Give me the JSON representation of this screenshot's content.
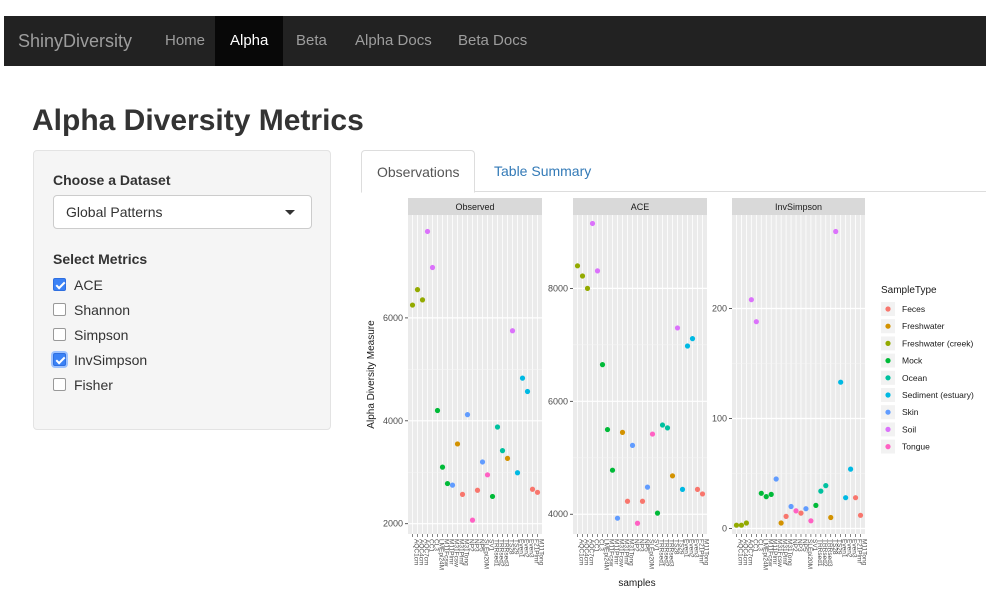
{
  "app": {
    "brand": "ShinyDiversity"
  },
  "nav": [
    {
      "label": "Home",
      "active": false
    },
    {
      "label": "Alpha",
      "active": true
    },
    {
      "label": "Beta",
      "active": false
    },
    {
      "label": "Alpha Docs",
      "active": false
    },
    {
      "label": "Beta Docs",
      "active": false
    }
  ],
  "page": {
    "title": "Alpha Diversity Metrics"
  },
  "sidebar": {
    "dataset_label": "Choose a Dataset",
    "dataset_value": "Global Patterns",
    "metrics_label": "Select Metrics",
    "metrics": [
      {
        "label": "ACE",
        "checked": true
      },
      {
        "label": "Shannon",
        "checked": false
      },
      {
        "label": "Simpson",
        "checked": false
      },
      {
        "label": "InvSimpson",
        "checked": true
      },
      {
        "label": "Fisher",
        "checked": false
      }
    ]
  },
  "tabs": [
    {
      "label": "Observations",
      "active": true
    },
    {
      "label": "Table Summary",
      "active": false
    }
  ],
  "chart_data": {
    "type": "scatter",
    "ylabel": "Alpha Diversity Measure",
    "xlabel": "samples",
    "legend_title": "SampleType",
    "legend_position": "right",
    "grid": true,
    "categories": [
      {
        "name": "Feces",
        "color": "#F8766D"
      },
      {
        "name": "Freshwater",
        "color": "#D39200"
      },
      {
        "name": "Freshwater (creek)",
        "color": "#93AA00"
      },
      {
        "name": "Mock",
        "color": "#00BA38"
      },
      {
        "name": "Ocean",
        "color": "#00C19F"
      },
      {
        "name": "Sediment (estuary)",
        "color": "#00B9E3"
      },
      {
        "name": "Skin",
        "color": "#619CFF"
      },
      {
        "name": "Soil",
        "color": "#DB72FB"
      },
      {
        "name": "Tongue",
        "color": "#FF61C3"
      }
    ],
    "panels": [
      {
        "title": "Observed",
        "ylim": [
          1800,
          8000
        ],
        "yticks": [
          "2000",
          "4000",
          "6000"
        ],
        "points": [
          {
            "x": 1,
            "y": 6250,
            "cat": 2
          },
          {
            "x": 2,
            "y": 6550,
            "cat": 2
          },
          {
            "x": 3,
            "y": 6350,
            "cat": 2
          },
          {
            "x": 4,
            "y": 7680,
            "cat": 7
          },
          {
            "x": 5,
            "y": 6980,
            "cat": 7
          },
          {
            "x": 6,
            "y": 4200,
            "cat": 3
          },
          {
            "x": 7,
            "y": 3100,
            "cat": 3
          },
          {
            "x": 8,
            "y": 2780,
            "cat": 3
          },
          {
            "x": 9,
            "y": 2750,
            "cat": 6
          },
          {
            "x": 10,
            "y": 3550,
            "cat": 1
          },
          {
            "x": 11,
            "y": 2570,
            "cat": 0
          },
          {
            "x": 12,
            "y": 4120,
            "cat": 6
          },
          {
            "x": 13,
            "y": 2070,
            "cat": 8
          },
          {
            "x": 14,
            "y": 2650,
            "cat": 0
          },
          {
            "x": 15,
            "y": 3200,
            "cat": 6
          },
          {
            "x": 16,
            "y": 2950,
            "cat": 8
          },
          {
            "x": 17,
            "y": 2530,
            "cat": 3
          },
          {
            "x": 18,
            "y": 3880,
            "cat": 4
          },
          {
            "x": 19,
            "y": 3420,
            "cat": 4
          },
          {
            "x": 20,
            "y": 3270,
            "cat": 1
          },
          {
            "x": 21,
            "y": 5750,
            "cat": 7
          },
          {
            "x": 22,
            "y": 2990,
            "cat": 5
          },
          {
            "x": 23,
            "y": 4830,
            "cat": 5
          },
          {
            "x": 24,
            "y": 4570,
            "cat": 5
          },
          {
            "x": 25,
            "y": 2670,
            "cat": 0
          },
          {
            "x": 26,
            "y": 2610,
            "cat": 0
          }
        ]
      },
      {
        "title": "ACE",
        "ylim": [
          3650,
          9300
        ],
        "yticks": [
          "4000",
          "6000",
          "8000"
        ],
        "points": [
          {
            "x": 1,
            "y": 8400,
            "cat": 2
          },
          {
            "x": 2,
            "y": 8220,
            "cat": 2
          },
          {
            "x": 3,
            "y": 8000,
            "cat": 2
          },
          {
            "x": 4,
            "y": 9150,
            "cat": 7
          },
          {
            "x": 5,
            "y": 8310,
            "cat": 7
          },
          {
            "x": 6,
            "y": 6650,
            "cat": 3
          },
          {
            "x": 7,
            "y": 5500,
            "cat": 3
          },
          {
            "x": 8,
            "y": 4780,
            "cat": 3
          },
          {
            "x": 9,
            "y": 3930,
            "cat": 6
          },
          {
            "x": 10,
            "y": 5450,
            "cat": 1
          },
          {
            "x": 11,
            "y": 4230,
            "cat": 0
          },
          {
            "x": 12,
            "y": 5220,
            "cat": 6
          },
          {
            "x": 13,
            "y": 3840,
            "cat": 8
          },
          {
            "x": 14,
            "y": 4230,
            "cat": 0
          },
          {
            "x": 15,
            "y": 4480,
            "cat": 6
          },
          {
            "x": 16,
            "y": 5420,
            "cat": 8
          },
          {
            "x": 17,
            "y": 4020,
            "cat": 3
          },
          {
            "x": 18,
            "y": 5580,
            "cat": 4
          },
          {
            "x": 19,
            "y": 5530,
            "cat": 4
          },
          {
            "x": 20,
            "y": 4680,
            "cat": 1
          },
          {
            "x": 21,
            "y": 7300,
            "cat": 7
          },
          {
            "x": 22,
            "y": 4440,
            "cat": 5
          },
          {
            "x": 23,
            "y": 6980,
            "cat": 5
          },
          {
            "x": 24,
            "y": 7110,
            "cat": 5
          },
          {
            "x": 25,
            "y": 4440,
            "cat": 0
          },
          {
            "x": 26,
            "y": 4360,
            "cat": 0
          }
        ]
      },
      {
        "title": "InvSimpson",
        "ylim": [
          -5,
          285
        ],
        "yticks": [
          "0",
          "100",
          "200"
        ],
        "points": [
          {
            "x": 1,
            "y": 3,
            "cat": 2
          },
          {
            "x": 2,
            "y": 3,
            "cat": 2
          },
          {
            "x": 3,
            "y": 5,
            "cat": 2
          },
          {
            "x": 4,
            "y": 208,
            "cat": 7
          },
          {
            "x": 5,
            "y": 188,
            "cat": 7
          },
          {
            "x": 6,
            "y": 32,
            "cat": 3
          },
          {
            "x": 7,
            "y": 29,
            "cat": 3
          },
          {
            "x": 8,
            "y": 31,
            "cat": 3
          },
          {
            "x": 9,
            "y": 45,
            "cat": 6
          },
          {
            "x": 10,
            "y": 5,
            "cat": 1
          },
          {
            "x": 11,
            "y": 11,
            "cat": 0
          },
          {
            "x": 12,
            "y": 20,
            "cat": 6
          },
          {
            "x": 13,
            "y": 16,
            "cat": 8
          },
          {
            "x": 14,
            "y": 14,
            "cat": 0
          },
          {
            "x": 15,
            "y": 18,
            "cat": 6
          },
          {
            "x": 16,
            "y": 7,
            "cat": 8
          },
          {
            "x": 17,
            "y": 21,
            "cat": 3
          },
          {
            "x": 18,
            "y": 34,
            "cat": 4
          },
          {
            "x": 19,
            "y": 39,
            "cat": 4
          },
          {
            "x": 20,
            "y": 10,
            "cat": 1
          },
          {
            "x": 21,
            "y": 270,
            "cat": 7
          },
          {
            "x": 22,
            "y": 133,
            "cat": 5
          },
          {
            "x": 23,
            "y": 28,
            "cat": 5
          },
          {
            "x": 24,
            "y": 54,
            "cat": 5
          },
          {
            "x": 25,
            "y": 28,
            "cat": 0
          },
          {
            "x": 26,
            "y": 12,
            "cat": 0
          }
        ]
      }
    ],
    "sample_labels": [
      "AQC1cm",
      "AQC4cm",
      "AQC7cm",
      "CC1",
      "CL3",
      "LMEpi24M",
      "M11Fcsw",
      "M11Plmr",
      "M31Fcsw",
      "M31Plmr",
      "M31Tong",
      "NP2",
      "NP3",
      "NP5",
      "SLEpi20M",
      "SV1",
      "TRRsed1",
      "TRRsed2",
      "TRRsed3",
      "TS28",
      "TS29",
      "Even1",
      "Even2",
      "Even3",
      "F21Plmr",
      "M11Tong"
    ]
  }
}
